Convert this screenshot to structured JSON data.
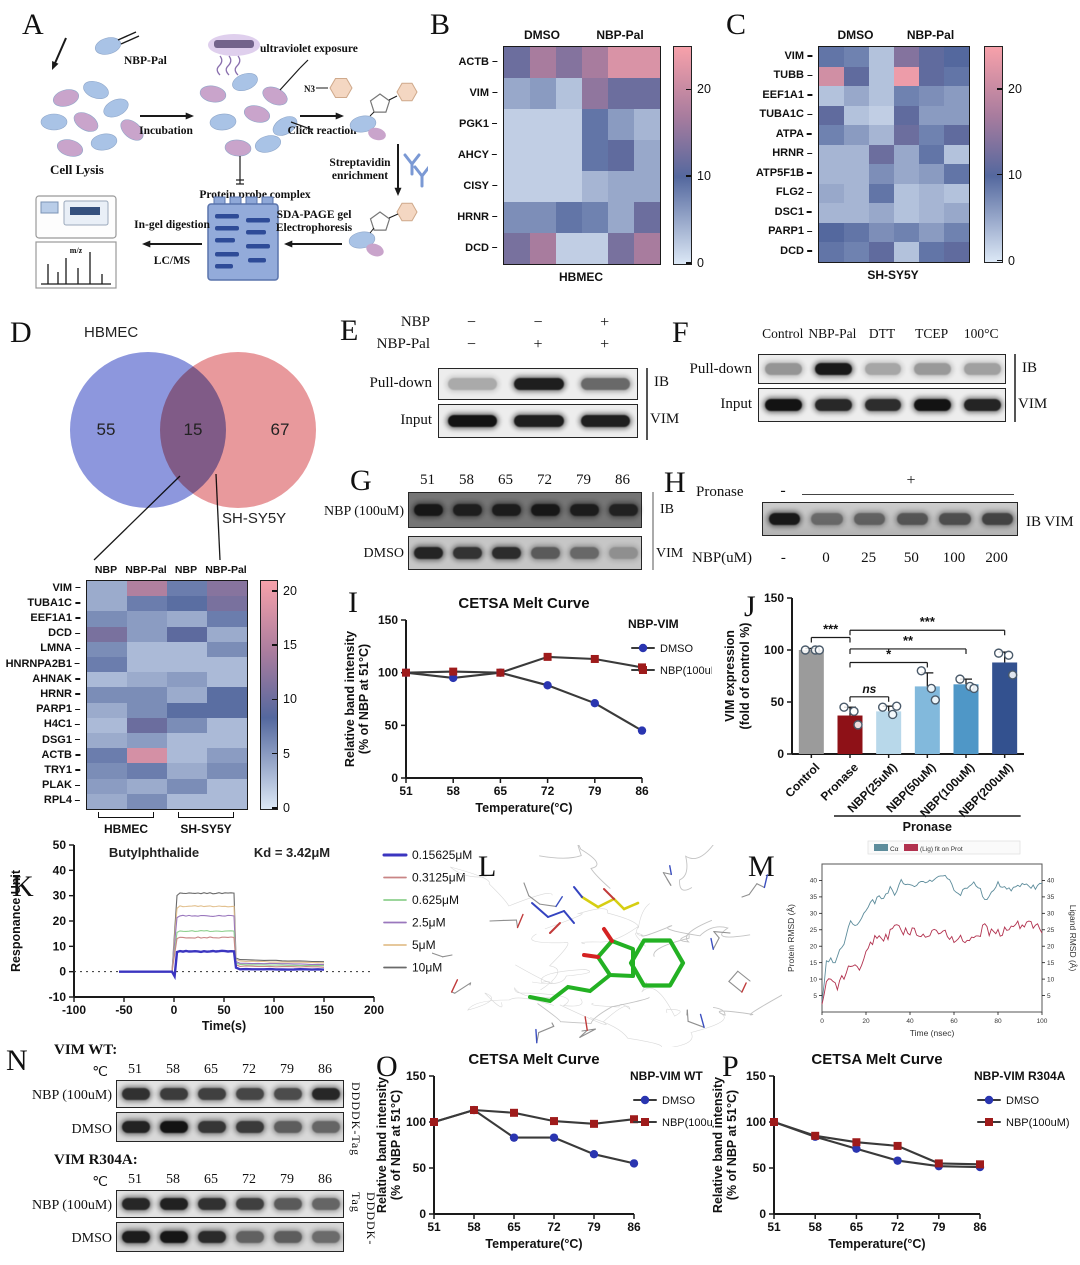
{
  "letters": {
    "A": "A",
    "B": "B",
    "C": "C",
    "D": "D",
    "E": "E",
    "F": "F",
    "G": "G",
    "H": "H",
    "I": "I",
    "J": "J",
    "K": "K",
    "L": "L",
    "M": "M",
    "N": "N",
    "O": "O",
    "P": "P"
  },
  "panelA": {
    "nbp_pal": "NBP-Pal",
    "cell_lysis": "Cell Lysis",
    "incubation": "Incubation",
    "uv_exposure": "ultraviolet exposure",
    "protein_probe_complex": "Protein probe complex",
    "n3": "N3",
    "click_reaction": "Click reaction",
    "streptavidin": "Streptavidin",
    "enrichment": "enrichment",
    "sda_page": "SDA-PAGE gel",
    "electrophoresis": "Electrophoresis",
    "in_gel": "In-gel digestion",
    "lcms": "LC/MS",
    "mz": "m/z"
  },
  "blots": {
    "E": {
      "nbp_label": "NBP",
      "nbp_values": [
        "−",
        "−",
        "+"
      ],
      "nbp_pal_label": "NBP-Pal",
      "nbp_pal_values": [
        "−",
        "+",
        "+"
      ],
      "pulldown_label": "Pull-down",
      "input_label": "Input",
      "ib_label": "IB",
      "vim_label": "VIM",
      "pulldown_bands": [
        0.3,
        0.95,
        0.6
      ],
      "input_bands": [
        1,
        0.95,
        0.95
      ]
    },
    "F": {
      "lanes": [
        "Control",
        "NBP-Pal",
        "DTT",
        "TCEP",
        "100°C"
      ],
      "pulldown_label": "Pull-down",
      "input_label": "Input",
      "ib_label": "IB",
      "vim_label": "VIM",
      "pulldown_bands": [
        0.4,
        0.97,
        0.32,
        0.38,
        0.35
      ],
      "input_bands": [
        1,
        0.9,
        0.88,
        1,
        0.92
      ]
    },
    "G": {
      "temps": [
        "51",
        "58",
        "65",
        "72",
        "79",
        "86"
      ],
      "row1_label": "NBP (100uM)",
      "row2_label": "DMSO",
      "ib_label": "IB",
      "vim_label": "VIM",
      "row1_bands": [
        0.95,
        0.88,
        0.9,
        0.95,
        0.9,
        0.85
      ],
      "row2_bands": [
        0.9,
        0.82,
        0.86,
        0.6,
        0.52,
        0.3
      ]
    },
    "H": {
      "pronase_label": "Pronase",
      "minus": "-",
      "plus": "+",
      "nbp_label": "NBP(uM)",
      "lane_values": [
        "-",
        "0",
        "25",
        "50",
        "100",
        "200"
      ],
      "ib_vim_label": "IB  VIM",
      "bands": [
        0.97,
        0.5,
        0.55,
        0.62,
        0.66,
        0.72
      ]
    },
    "N": {
      "group1_title": "VIM WT:",
      "group2_title": "VIM R304A:",
      "temp_symbol": "℃",
      "temps": [
        "51",
        "58",
        "65",
        "72",
        "79",
        "86"
      ],
      "row1_label": "NBP (100uM)",
      "row2_label": "DMSO",
      "tag_label": "DDDDK-Tag",
      "g1_row1_bands": [
        0.85,
        0.8,
        0.78,
        0.75,
        0.72,
        0.9
      ],
      "g1_row2_bands": [
        0.92,
        1,
        0.82,
        0.8,
        0.62,
        0.58
      ],
      "g2_row1_bands": [
        0.9,
        0.93,
        0.85,
        0.78,
        0.65,
        0.6
      ],
      "g2_row2_bands": [
        0.95,
        0.98,
        0.88,
        0.6,
        0.62,
        0.55
      ]
    }
  },
  "chart_data": [
    {
      "id": "B",
      "type": "heatmap",
      "group_labels": [
        "DMSO",
        "NBP-Pal"
      ],
      "rows": [
        "ACTB",
        "VIM",
        "PGK1",
        "AHCY",
        "CISY",
        "HRNR",
        "DCD"
      ],
      "values": [
        [
          12,
          17,
          14,
          17,
          22,
          22
        ],
        [
          5,
          6,
          3,
          15,
          12,
          12
        ],
        [
          2,
          2,
          2,
          9,
          6,
          4
        ],
        [
          2,
          2,
          2,
          9,
          11,
          5
        ],
        [
          2,
          2,
          2,
          4,
          5,
          5
        ],
        [
          7,
          7,
          9,
          8,
          5,
          12
        ],
        [
          13,
          17,
          2,
          2,
          13,
          17
        ]
      ],
      "bottom_label": "HBMEC",
      "colorbar_ticks": [
        0,
        10,
        20
      ],
      "vmax": 25
    },
    {
      "id": "C",
      "type": "heatmap",
      "group_labels": [
        "DMSO",
        "NBP-Pal"
      ],
      "rows": [
        "VIM",
        "TUBB",
        "EEF1A1",
        "TUBA1C",
        "ATPA",
        "HRNR",
        "ATP5F1B",
        "FLG2",
        "DSC1",
        "PARP1",
        "DCD"
      ],
      "values": [
        [
          9,
          8,
          3,
          14,
          11,
          10
        ],
        [
          21,
          11,
          3,
          24,
          11,
          9
        ],
        [
          3,
          5,
          3,
          8,
          7,
          6
        ],
        [
          11,
          3,
          2,
          11,
          6,
          6
        ],
        [
          8,
          6,
          4,
          12,
          8,
          11
        ],
        [
          4,
          4,
          12,
          5,
          9,
          3
        ],
        [
          4,
          4,
          7,
          5,
          6,
          9
        ],
        [
          5,
          4,
          9,
          3,
          4,
          3
        ],
        [
          4,
          4,
          5,
          3,
          4,
          5
        ],
        [
          10,
          9,
          7,
          8,
          6,
          8
        ],
        [
          9,
          8,
          11,
          3,
          9,
          11
        ]
      ],
      "bottom_label": "SH-SY5Y",
      "colorbar_ticks": [
        0,
        10,
        20
      ],
      "vmax": 25
    },
    {
      "id": "D_venn",
      "type": "venn",
      "left_label": "HBMEC",
      "right_label": "SH-SY5Y",
      "left_count": 55,
      "overlap_count": 15,
      "right_count": 67,
      "left_color": "#8d97dd",
      "right_color": "#e8999c"
    },
    {
      "id": "D",
      "type": "heatmap",
      "col_headers": [
        "NBP",
        "NBP-Pal",
        "NBP",
        "NBP-Pal"
      ],
      "rows": [
        "VIM",
        "TUBA1C",
        "EEF1A1",
        "DCD",
        "LMNA",
        "HNRNPA2B1",
        "AHNAK",
        "HRNR",
        "PARP1",
        "H4C1",
        "DSG1",
        "ACTB",
        "TRY1",
        "PLAK",
        "RPL4"
      ],
      "values": [
        [
          4,
          15,
          7,
          12
        ],
        [
          4,
          7,
          8,
          11
        ],
        [
          6,
          5,
          4,
          7
        ],
        [
          11,
          5,
          9,
          4
        ],
        [
          6,
          3,
          3,
          6
        ],
        [
          7,
          3,
          3,
          3
        ],
        [
          3,
          4,
          5,
          3
        ],
        [
          6,
          6,
          4,
          8
        ],
        [
          4,
          6,
          8,
          8
        ],
        [
          3,
          10,
          6,
          3
        ],
        [
          4,
          5,
          3,
          3
        ],
        [
          7,
          18,
          3,
          5
        ],
        [
          6,
          7,
          4,
          6
        ],
        [
          5,
          4,
          6,
          3
        ],
        [
          4,
          6,
          3,
          3
        ]
      ],
      "bottom_groups": [
        "HBMEC",
        "SH-SY5Y"
      ],
      "colorbar_ticks": [
        0,
        5,
        10,
        15,
        20
      ],
      "vmax": 21
    },
    {
      "id": "I",
      "type": "line",
      "title": "CETSA Melt Curve",
      "legend_title": "NBP-VIM",
      "x": [
        51,
        58,
        65,
        72,
        79,
        86
      ],
      "ylim": [
        0,
        150
      ],
      "yticks": [
        0,
        50,
        100,
        150
      ],
      "xlabel": "Temperature(°C)",
      "ylabel1": "Relative band intensity",
      "ylabel2": "(% of NBP at 51°C)",
      "series": [
        {
          "name": "DMSO",
          "color": "#2a35b0",
          "marker": "circle",
          "values": [
            100,
            95,
            100,
            88,
            71,
            45
          ]
        },
        {
          "name": "NBP(100uM)",
          "color": "#9e1b1b",
          "marker": "square",
          "values": [
            100,
            101,
            100,
            115,
            113,
            105
          ]
        }
      ]
    },
    {
      "id": "J",
      "type": "bar",
      "categories": [
        "Control",
        "Pronase",
        "NBP(25uM)",
        "NBP(50uM)",
        "NBP(100uM)",
        "NBP(200uM)"
      ],
      "values": [
        100,
        37,
        41,
        65,
        67,
        88
      ],
      "errors": [
        1.5,
        8,
        5,
        13,
        5,
        10
      ],
      "points": [
        [
          100,
          100,
          100
        ],
        [
          45,
          41,
          28
        ],
        [
          45,
          38,
          46
        ],
        [
          80,
          63,
          52
        ],
        [
          72,
          65,
          63
        ],
        [
          97,
          95,
          76
        ]
      ],
      "colors": [
        "#9b9b9b",
        "#8e1117",
        "#b8d8ea",
        "#82b9dc",
        "#4f97c7",
        "#33518f"
      ],
      "ylim": [
        0,
        150
      ],
      "yticks": [
        0,
        50,
        100,
        150
      ],
      "ylabel1": "VIM expression",
      "ylabel2": "(fold of control %)",
      "group_label": "Pronase",
      "sig": [
        {
          "from": 0,
          "to": 1,
          "label": "***",
          "v": 112
        },
        {
          "from": 1,
          "to": 2,
          "label": "ns",
          "v": 55
        },
        {
          "from": 1,
          "to": 3,
          "label": "*",
          "v": 88
        },
        {
          "from": 1,
          "to": 4,
          "label": "**",
          "v": 101
        },
        {
          "from": 1,
          "to": 5,
          "label": "***",
          "v": 119
        }
      ]
    },
    {
      "id": "K",
      "type": "spr",
      "title": "Butylphthalide",
      "kd": "Kd = 3.42μM",
      "ylabel": "Responance Unit",
      "xlabel": "Time(s)",
      "yticks": [
        -10,
        0,
        10,
        20,
        30,
        40,
        50
      ],
      "xticks": [
        -100,
        -50,
        0,
        50,
        100,
        150,
        200
      ],
      "assoc_start": 0,
      "assoc_end": 60,
      "sample_start": -55,
      "sample_end": 150,
      "series": [
        {
          "name": "0.15625μM",
          "color": "#3b35c0",
          "width": 2.4,
          "plateau": 8,
          "residual": 1,
          "dip": true
        },
        {
          "name": "0.3125μM",
          "color": "#c98585",
          "width": 1.1,
          "plateau": 13.5,
          "residual": 2.2
        },
        {
          "name": "0.625μM",
          "color": "#8fd08f",
          "width": 1.1,
          "plateau": 16,
          "residual": 2.8
        },
        {
          "name": "2.5μM",
          "color": "#9a77bd",
          "width": 1.1,
          "plateau": 22,
          "residual": 3.4
        },
        {
          "name": "5μM",
          "color": "#e2c08e",
          "width": 1.1,
          "plateau": 25.8,
          "residual": 4.2
        },
        {
          "name": "10μM",
          "color": "#6a6a6a",
          "width": 1.1,
          "plateau": 31,
          "residual": 4.8
        }
      ]
    },
    {
      "id": "M",
      "type": "line",
      "xlabel": "Time (nsec)",
      "ylabel_left": "Protein RMSD (Å)",
      "ylabel_right": "Ligand RMSD (Å)",
      "yticks": [
        5,
        10,
        15,
        20,
        25,
        30,
        35,
        40
      ],
      "xticks": [
        0,
        20,
        40,
        60,
        80,
        100
      ],
      "series": [
        {
          "name": "Cα",
          "color": "#5e8d9c",
          "noise": 1.4,
          "keypoints": [
            [
              0,
              3
            ],
            [
              2,
              15
            ],
            [
              4,
              16
            ],
            [
              6,
              15
            ],
            [
              8,
              19
            ],
            [
              10,
              21
            ],
            [
              13,
              28
            ],
            [
              15,
              26
            ],
            [
              18,
              29
            ],
            [
              20,
              31
            ],
            [
              22,
              34
            ],
            [
              24,
              33
            ],
            [
              26,
              36
            ],
            [
              28,
              34
            ],
            [
              31,
              38
            ],
            [
              33,
              35
            ],
            [
              36,
              40
            ],
            [
              38,
              39
            ],
            [
              41,
              38
            ],
            [
              44,
              39
            ],
            [
              47,
              40
            ],
            [
              50,
              40
            ],
            [
              53,
              41
            ],
            [
              56,
              41
            ],
            [
              58,
              40
            ],
            [
              60,
              37
            ],
            [
              63,
              36
            ],
            [
              66,
              38
            ],
            [
              69,
              39
            ],
            [
              72,
              37
            ],
            [
              74,
              34
            ],
            [
              77,
              36
            ],
            [
              80,
              39
            ],
            [
              83,
              38
            ],
            [
              86,
              37
            ],
            [
              89,
              38
            ],
            [
              92,
              39
            ],
            [
              95,
              38
            ],
            [
              98,
              38
            ],
            [
              100,
              39
            ]
          ]
        },
        {
          "name": "(Lig) fit on Prot",
          "color": "#b2324f",
          "noise": 2.6,
          "keypoints": [
            [
              0,
              3
            ],
            [
              2,
              10
            ],
            [
              5,
              9
            ],
            [
              7,
              8
            ],
            [
              10,
              11
            ],
            [
              13,
              14
            ],
            [
              15,
              15
            ],
            [
              17,
              14
            ],
            [
              20,
              18
            ],
            [
              23,
              21
            ],
            [
              25,
              23
            ],
            [
              28,
              22
            ],
            [
              31,
              24
            ],
            [
              33,
              26
            ],
            [
              36,
              25
            ],
            [
              39,
              24
            ],
            [
              42,
              25
            ],
            [
              45,
              24
            ],
            [
              48,
              23
            ],
            [
              51,
              24
            ],
            [
              54,
              23
            ],
            [
              57,
              24
            ],
            [
              60,
              22
            ],
            [
              63,
              23
            ],
            [
              66,
              21
            ],
            [
              69,
              22
            ],
            [
              72,
              24
            ],
            [
              74,
              28
            ],
            [
              76,
              24
            ],
            [
              79,
              25
            ],
            [
              82,
              24
            ],
            [
              85,
              26
            ],
            [
              88,
              27
            ],
            [
              91,
              26
            ],
            [
              94,
              28
            ],
            [
              96,
              26
            ],
            [
              98,
              28
            ],
            [
              100,
              24
            ]
          ]
        }
      ]
    },
    {
      "id": "O",
      "type": "line",
      "title": "CETSA Melt Curve",
      "legend_title": "NBP-VIM WT",
      "x": [
        51,
        58,
        65,
        72,
        79,
        86
      ],
      "ylim": [
        0,
        150
      ],
      "yticks": [
        0,
        50,
        100,
        150
      ],
      "xlabel": "Temperature(°C)",
      "ylabel1": "Relative band intensity",
      "ylabel2": "(% of NBP at 51°C)",
      "series": [
        {
          "name": "DMSO",
          "color": "#2a35b0",
          "marker": "circle",
          "values": [
            100,
            113,
            83,
            83,
            65,
            55
          ]
        },
        {
          "name": "NBP(100uM)",
          "color": "#9e1b1b",
          "marker": "square",
          "values": [
            100,
            113,
            110,
            101,
            98,
            103
          ]
        }
      ]
    },
    {
      "id": "P",
      "type": "line",
      "title": "CETSA Melt Curve",
      "legend_title": "NBP-VIM R304A",
      "x": [
        51,
        58,
        65,
        72,
        79,
        86
      ],
      "ylim": [
        0,
        150
      ],
      "yticks": [
        0,
        50,
        100,
        150
      ],
      "xlabel": "Temperature(°C)",
      "ylabel1": "Relative band intensity",
      "ylabel2": "(% of NBP at 51°C)",
      "series": [
        {
          "name": "DMSO",
          "color": "#2a35b0",
          "marker": "circle",
          "values": [
            100,
            84,
            71,
            58,
            52,
            51
          ]
        },
        {
          "name": "NBP(100uM)",
          "color": "#9e1b1b",
          "marker": "square",
          "values": [
            100,
            85,
            78,
            74,
            55,
            54
          ]
        }
      ]
    }
  ]
}
